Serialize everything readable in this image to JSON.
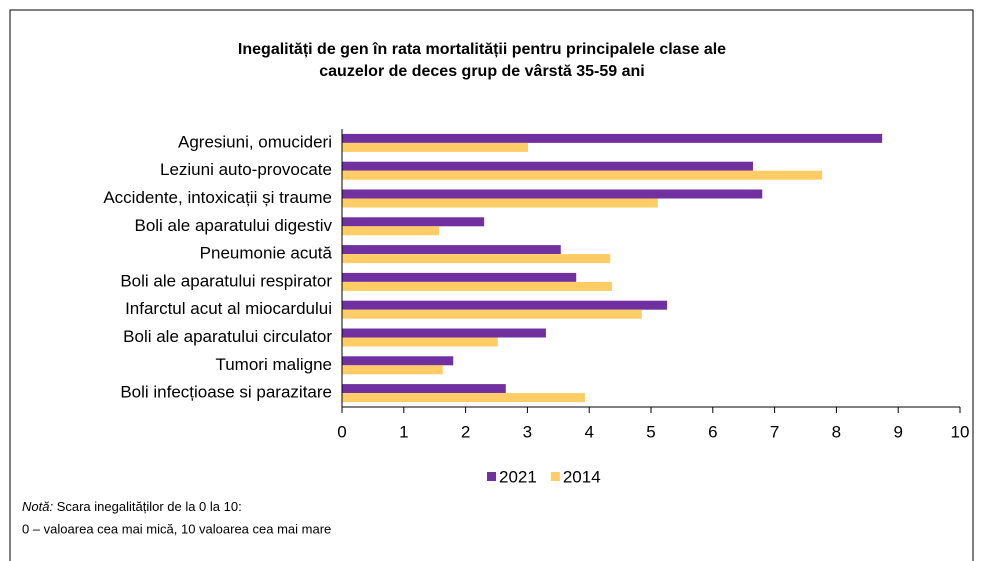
{
  "chart_data": {
    "type": "hbar",
    "title_lines": [
      "Inegalități de gen în rata mortalității pentru principalele clase ale",
      "cauzelor de deces grup de vârstă 35-59 ani"
    ],
    "categories": [
      "Agresiuni, omucideri",
      "Leziuni auto-provocate",
      "Accidente, intoxicații și traume",
      "Boli ale aparatului digestiv",
      "Pneumonie acută",
      "Boli ale aparatului respirator",
      "Infarctul acut al miocardului",
      "Boli ale aparatului circulator",
      "Tumori maligne",
      "Boli infecțioase si parazitare"
    ],
    "series": [
      {
        "name": "2021",
        "color": "#7030a0",
        "values": [
          8.74,
          6.65,
          6.8,
          2.3,
          3.54,
          3.79,
          5.26,
          3.3,
          1.8,
          2.65
        ]
      },
      {
        "name": "2014",
        "color": "#ffcc66",
        "values": [
          3.01,
          7.77,
          5.11,
          1.57,
          4.34,
          4.37,
          4.85,
          2.52,
          1.63,
          3.93
        ]
      }
    ],
    "xlim": [
      0,
      10
    ],
    "xticks": [
      0,
      1,
      2,
      3,
      4,
      5,
      6,
      7,
      8,
      9,
      10
    ],
    "legend": "bottom",
    "note_label": "Notă:",
    "note_text": "Scara inegalităților de la 0 la 10:",
    "note_line2": "0 – valoarea cea mai mică, 10 valoarea cea mai mare"
  }
}
